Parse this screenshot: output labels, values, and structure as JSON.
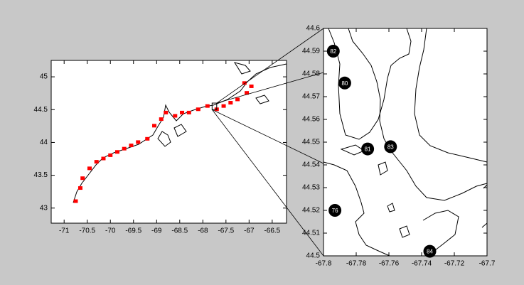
{
  "chart_data": [
    {
      "type": "scatter",
      "xlim": [
        -71.28,
        -66.19
      ],
      "ylim": [
        42.77,
        45.25
      ],
      "xticks": [
        -71,
        -70.5,
        -70,
        -69.5,
        -69,
        -68.5,
        -68,
        -67.5,
        -67,
        -66.5
      ],
      "yticks": [
        43,
        43.5,
        44,
        44.5,
        45
      ],
      "color": "#ff0000",
      "x": [
        -70.75,
        -70.65,
        -70.6,
        -70.45,
        -70.3,
        -70.15,
        -70.0,
        -69.85,
        -69.7,
        -69.55,
        -69.4,
        -69.2,
        -69.05,
        -68.9,
        -68.8,
        -68.6,
        -68.45,
        -68.3,
        -68.1,
        -67.9,
        -67.7,
        -67.55,
        -67.4,
        -67.25,
        -67.05,
        -66.95,
        -67.1
      ],
      "y": [
        43.1,
        43.3,
        43.45,
        43.6,
        43.7,
        43.75,
        43.8,
        43.85,
        43.9,
        43.95,
        44.0,
        44.05,
        44.25,
        44.35,
        44.45,
        44.4,
        44.45,
        44.45,
        44.5,
        44.55,
        44.5,
        44.55,
        44.6,
        44.65,
        44.75,
        44.85,
        44.9
      ]
    },
    {
      "type": "labeled-scatter",
      "xlim": [
        -67.8,
        -67.7
      ],
      "ylim": [
        44.5,
        44.6
      ],
      "xticks": [
        -67.8,
        -67.78,
        -67.76,
        -67.74,
        -67.72,
        -67.7
      ],
      "yticks": [
        44.5,
        44.51,
        44.52,
        44.53,
        44.54,
        44.55,
        44.56,
        44.57,
        44.58,
        44.59,
        44.6
      ],
      "color": "#000000",
      "labels": [
        "82",
        "80",
        "81",
        "83",
        "76",
        "84"
      ],
      "x": [
        -67.794,
        -67.787,
        -67.773,
        -67.759,
        -67.793,
        -67.735
      ],
      "y": [
        44.59,
        44.576,
        44.547,
        44.548,
        44.52,
        44.502
      ]
    }
  ]
}
